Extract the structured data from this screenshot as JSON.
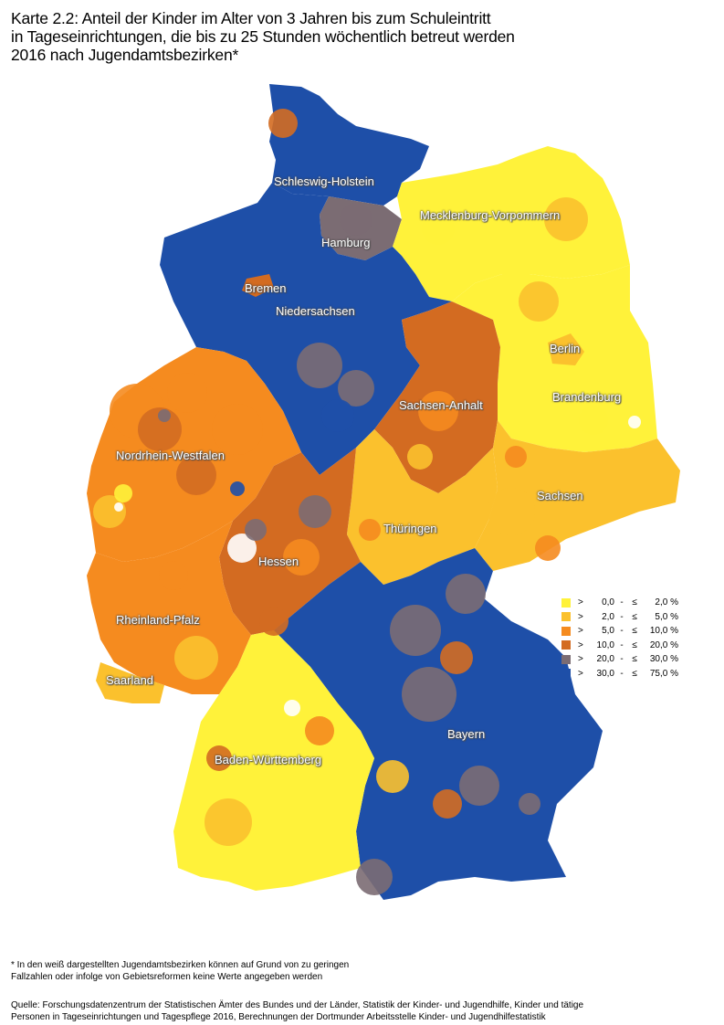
{
  "title": {
    "line1": "Karte 2.2: Anteil der Kinder im Alter von 3 Jahren bis zum Schuleintritt",
    "line2": "in Tageseinrichtungen, die bis zu 25 Stunden wöchentlich betreut werden",
    "line3": "2016 nach Jugendamtsbezirken*"
  },
  "colors": {
    "class1": "#FFF23A",
    "class2": "#FBC12D",
    "class3": "#F58B1F",
    "class4": "#D36B21",
    "class5": "#7B6C73",
    "class6": "#1E4FA8",
    "no_data": "#FFFFFF"
  },
  "regions": [
    {
      "id": "sh",
      "label": "Schleswig-Holstein",
      "class": 6
    },
    {
      "id": "hh",
      "label": "Hamburg",
      "class": 5
    },
    {
      "id": "mv",
      "label": "Mecklenburg-Vorpommern",
      "class": 1
    },
    {
      "id": "hb",
      "label": "Bremen",
      "class": 4
    },
    {
      "id": "ni",
      "label": "Niedersachsen",
      "class": 6
    },
    {
      "id": "be",
      "label": "Berlin",
      "class": 2
    },
    {
      "id": "bb",
      "label": "Brandenburg",
      "class": 1
    },
    {
      "id": "st",
      "label": "Sachsen-Anhalt",
      "class": 4
    },
    {
      "id": "nw",
      "label": "Nordrhein-Westfalen",
      "class": 3
    },
    {
      "id": "sn",
      "label": "Sachsen",
      "class": 2
    },
    {
      "id": "th",
      "label": "Thüringen",
      "class": 2
    },
    {
      "id": "he",
      "label": "Hessen",
      "class": 4
    },
    {
      "id": "rp",
      "label": "Rheinland-Pfalz",
      "class": 3
    },
    {
      "id": "sl",
      "label": "Saarland",
      "class": 2
    },
    {
      "id": "by",
      "label": "Bayern",
      "class": 6
    },
    {
      "id": "bw",
      "label": "Baden-Württemberg",
      "class": 1
    }
  ],
  "legend": [
    {
      "gt": ">",
      "lo": "0,0",
      "dash": "-",
      "le": "≤",
      "hi": "2,0 %",
      "color": "#FFF23A"
    },
    {
      "gt": ">",
      "lo": "2,0",
      "dash": "-",
      "le": "≤",
      "hi": "5,0 %",
      "color": "#FBC12D"
    },
    {
      "gt": ">",
      "lo": "5,0",
      "dash": "-",
      "le": "≤",
      "hi": "10,0 %",
      "color": "#F58B1F"
    },
    {
      "gt": ">",
      "lo": "10,0",
      "dash": "-",
      "le": "≤",
      "hi": "20,0 %",
      "color": "#D36B21"
    },
    {
      "gt": ">",
      "lo": "20,0",
      "dash": "-",
      "le": "≤",
      "hi": "30,0 %",
      "color": "#7B6C73"
    },
    {
      "gt": ">",
      "lo": "30,0",
      "dash": "-",
      "le": "≤",
      "hi": "75,0 %",
      "color": "#1E4FA8"
    }
  ],
  "footnote": {
    "line1": "* In den weiß dargestellten Jugendamtsbezirken können auf Grund von zu geringen",
    "line2": "Fallzahlen oder infolge von Gebietsreformen keine Werte angegeben werden"
  },
  "source": {
    "line1": "Quelle: Forschungsdatenzentrum der Statistischen Ämter des Bundes und der Länder, Statistik der Kinder- und Jugendhilfe, Kinder und tätige",
    "line2": "Personen in Tageseinrichtungen und Tagespflege 2016, Berechnungen der Dortmunder Arbeitsstelle Kinder- und Jugendhilfestatistik"
  }
}
